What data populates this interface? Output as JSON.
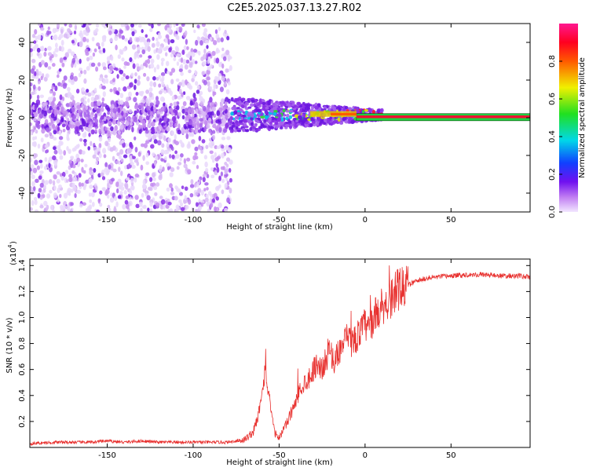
{
  "title": "C2E5.2025.037.13.27.R02",
  "colors": {
    "snr_line": "#e8302e",
    "spectrogram_purple": "#6a16e0",
    "axis": "#000000"
  },
  "chart_data": [
    {
      "type": "heatmap",
      "name": "spectrogram",
      "xlabel": "Height of straight line (km)",
      "ylabel": "Frequency (Hz)",
      "xlim": [
        -195,
        96
      ],
      "ylim": [
        -50,
        50
      ],
      "x_ticks": [
        -150,
        -100,
        -50,
        0,
        50
      ],
      "y_ticks": [
        -40,
        -20,
        0,
        20,
        40
      ],
      "colorbar": {
        "label": "Normalized spectral amplitude",
        "range": [
          0,
          1
        ],
        "ticks": [
          0.0,
          0.2,
          0.4,
          0.6,
          0.8
        ],
        "colormap": "rainbow (purple-blue-cyan-green-yellow-red-magenta)"
      },
      "regions": [
        {
          "x_range": [
            -195,
            -78
          ],
          "freq_range": [
            -50,
            50
          ],
          "amplitude": "low (0.05-0.25), scattered noise"
        },
        {
          "x_range": [
            -78,
            10
          ],
          "freq_range": [
            -8,
            8
          ],
          "amplitude": "rising toward narrow band near 0-3 Hz"
        },
        {
          "x_range": [
            10,
            96
          ],
          "freq_range": [
            -1,
            2
          ],
          "amplitude": "high (~0.9), narrow line at ~0.5 Hz"
        }
      ],
      "x_tick_labels": [
        "-150",
        "-100",
        "-50",
        "0",
        "50"
      ],
      "y_tick_labels": [
        "-40",
        "-20",
        "0",
        "20",
        "40"
      ],
      "colorbar_tick_labels": [
        "0.0",
        "0.2",
        "0.4",
        "0.6",
        "0.8"
      ]
    },
    {
      "type": "line",
      "name": "snr",
      "xlabel": "Height of straight line (km)",
      "ylabel": "SNR (10 * v/v)",
      "scale_label": "(x10",
      "scale_exp": "4",
      "y_unit_multiplier": 10000,
      "xlim": [
        -195,
        96
      ],
      "ylim": [
        0,
        1.45
      ],
      "x_ticks": [
        -150,
        -100,
        -50,
        0,
        50
      ],
      "y_ticks": [
        0.2,
        0.4,
        0.6,
        0.8,
        1.0,
        1.2,
        1.4
      ],
      "x_tick_labels": [
        "-150",
        "-100",
        "-50",
        "0",
        "50"
      ],
      "y_tick_labels": [
        "0.2",
        "0.4",
        "0.6",
        "0.8",
        "1.0",
        "1.2",
        "1.4"
      ],
      "series": [
        {
          "x": [
            -195,
            -180,
            -170,
            -160,
            -150,
            -140,
            -130,
            -120,
            -110,
            -100,
            -90,
            -80,
            -75,
            -70,
            -65,
            -62,
            -60,
            -58,
            -56,
            -54,
            -52,
            -50,
            -48,
            -45,
            -42,
            -40,
            -38,
            -35,
            -32,
            -30,
            -28,
            -25,
            -22,
            -20,
            -18,
            -15,
            -12,
            -10,
            -8,
            -5,
            -2,
            0,
            2,
            5,
            8,
            10,
            12,
            15,
            18,
            20,
            25,
            30,
            35,
            40,
            50,
            60,
            70,
            80,
            90,
            96
          ],
          "y": [
            0.03,
            0.04,
            0.04,
            0.04,
            0.05,
            0.04,
            0.05,
            0.04,
            0.04,
            0.04,
            0.04,
            0.04,
            0.05,
            0.06,
            0.12,
            0.25,
            0.45,
            0.6,
            0.4,
            0.2,
            0.1,
            0.08,
            0.12,
            0.2,
            0.3,
            0.35,
            0.45,
            0.5,
            0.55,
            0.6,
            0.65,
            0.6,
            0.7,
            0.75,
            0.65,
            0.75,
            0.8,
            0.85,
            0.8,
            0.85,
            0.9,
            0.95,
            0.9,
            1.0,
            1.05,
            1.1,
            1.1,
            1.15,
            1.2,
            1.22,
            1.25,
            1.28,
            1.3,
            1.31,
            1.32,
            1.33,
            1.33,
            1.32,
            1.32,
            1.31
          ]
        }
      ]
    }
  ]
}
